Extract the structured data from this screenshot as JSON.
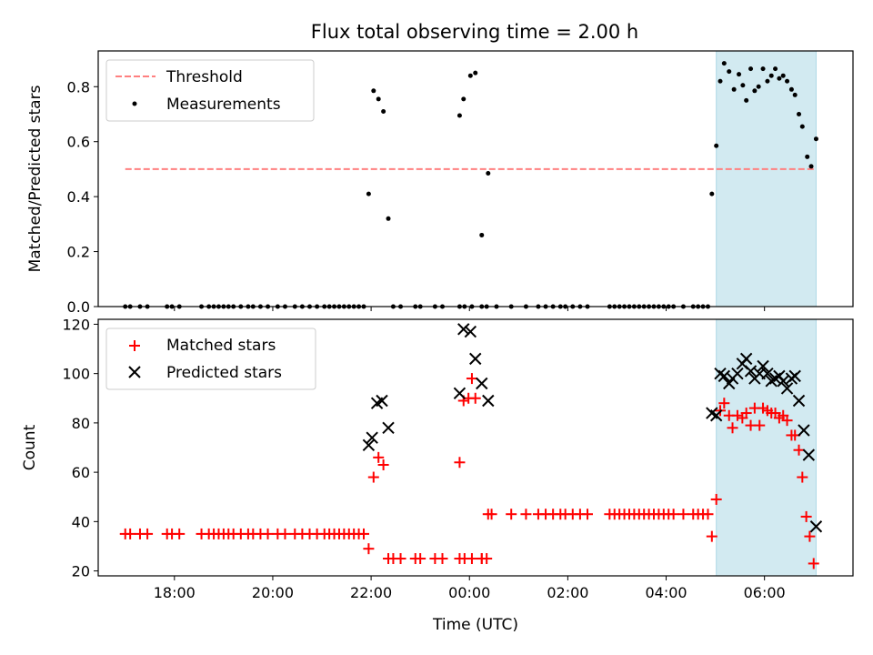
{
  "figure": {
    "title": "Flux total observing time = 2.00 h"
  },
  "chart_data": [
    {
      "type": "scatter",
      "ylabel": "Matched/Predicted stars",
      "ylim": [
        0,
        0.93
      ],
      "yticks": [
        0.0,
        0.2,
        0.4,
        0.6,
        0.8
      ],
      "ytick_labels": [
        "0.0",
        "0.2",
        "0.4",
        "0.6",
        "0.8"
      ],
      "xlim_hours": [
        16.45,
        31.8
      ],
      "shaded_span_hours": [
        29.02,
        31.05
      ],
      "shade_color": "#add8e6",
      "threshold": {
        "name": "Threshold",
        "y": 0.5,
        "x_hours": [
          17.0,
          31.05
        ],
        "color": "#ff8080"
      },
      "series": [
        {
          "name": "Measurements",
          "color": "#000000",
          "points": [
            [
              17.0,
              0
            ],
            [
              17.1,
              0
            ],
            [
              17.3,
              0
            ],
            [
              17.45,
              0
            ],
            [
              17.85,
              0
            ],
            [
              17.95,
              0
            ],
            [
              18.1,
              0
            ],
            [
              18.55,
              0
            ],
            [
              18.7,
              0
            ],
            [
              18.8,
              0
            ],
            [
              18.9,
              0
            ],
            [
              19.0,
              0
            ],
            [
              19.1,
              0
            ],
            [
              19.2,
              0
            ],
            [
              19.35,
              0
            ],
            [
              19.5,
              0
            ],
            [
              19.6,
              0
            ],
            [
              19.75,
              0
            ],
            [
              19.9,
              0
            ],
            [
              20.1,
              0
            ],
            [
              20.25,
              0
            ],
            [
              20.45,
              0
            ],
            [
              20.6,
              0
            ],
            [
              20.75,
              0
            ],
            [
              20.9,
              0
            ],
            [
              21.05,
              0
            ],
            [
              21.15,
              0
            ],
            [
              21.25,
              0
            ],
            [
              21.35,
              0
            ],
            [
              21.45,
              0
            ],
            [
              21.55,
              0
            ],
            [
              21.65,
              0
            ],
            [
              21.75,
              0
            ],
            [
              21.85,
              0
            ],
            [
              21.95,
              0.41
            ],
            [
              22.05,
              0.785
            ],
            [
              22.15,
              0.755
            ],
            [
              22.25,
              0.71
            ],
            [
              22.35,
              0.32
            ],
            [
              22.45,
              0
            ],
            [
              22.6,
              0
            ],
            [
              22.9,
              0
            ],
            [
              23.0,
              0
            ],
            [
              23.3,
              0
            ],
            [
              23.45,
              0
            ],
            [
              23.8,
              0
            ],
            [
              23.9,
              0
            ],
            [
              24.05,
              0
            ],
            [
              24.25,
              0
            ],
            [
              23.8,
              0.695
            ],
            [
              23.88,
              0.755
            ],
            [
              24.02,
              0.84
            ],
            [
              24.12,
              0.85
            ],
            [
              24.25,
              0.26
            ],
            [
              24.38,
              0.485
            ],
            [
              24.35,
              0
            ],
            [
              24.55,
              0
            ],
            [
              24.85,
              0
            ],
            [
              25.15,
              0
            ],
            [
              25.4,
              0
            ],
            [
              25.55,
              0
            ],
            [
              25.7,
              0
            ],
            [
              25.85,
              0
            ],
            [
              25.95,
              0
            ],
            [
              26.1,
              0
            ],
            [
              26.25,
              0
            ],
            [
              26.4,
              0
            ],
            [
              26.85,
              0
            ],
            [
              26.95,
              0
            ],
            [
              27.05,
              0
            ],
            [
              27.15,
              0
            ],
            [
              27.25,
              0
            ],
            [
              27.35,
              0
            ],
            [
              27.45,
              0
            ],
            [
              27.55,
              0
            ],
            [
              27.65,
              0
            ],
            [
              27.75,
              0
            ],
            [
              27.85,
              0
            ],
            [
              27.95,
              0
            ],
            [
              28.05,
              0
            ],
            [
              28.15,
              0
            ],
            [
              28.35,
              0
            ],
            [
              28.55,
              0
            ],
            [
              28.65,
              0
            ],
            [
              28.75,
              0
            ],
            [
              28.85,
              0
            ],
            [
              28.93,
              0.41
            ],
            [
              29.02,
              0.585
            ],
            [
              29.1,
              0.82
            ],
            [
              29.18,
              0.885
            ],
            [
              29.28,
              0.855
            ],
            [
              29.38,
              0.79
            ],
            [
              29.48,
              0.845
            ],
            [
              29.56,
              0.805
            ],
            [
              29.63,
              0.75
            ],
            [
              29.72,
              0.865
            ],
            [
              29.8,
              0.785
            ],
            [
              29.88,
              0.8
            ],
            [
              29.97,
              0.865
            ],
            [
              30.06,
              0.82
            ],
            [
              30.14,
              0.84
            ],
            [
              30.22,
              0.865
            ],
            [
              30.3,
              0.83
            ],
            [
              30.38,
              0.84
            ],
            [
              30.46,
              0.82
            ],
            [
              30.55,
              0.79
            ],
            [
              30.62,
              0.77
            ],
            [
              30.7,
              0.7
            ],
            [
              30.77,
              0.655
            ],
            [
              30.87,
              0.545
            ],
            [
              30.95,
              0.51
            ],
            [
              31.05,
              0.61
            ]
          ]
        }
      ]
    },
    {
      "type": "scatter",
      "xlabel": "Time (UTC)",
      "ylabel": "Count",
      "ylim": [
        18,
        122
      ],
      "yticks": [
        20,
        40,
        60,
        80,
        100,
        120
      ],
      "ytick_labels": [
        "20",
        "40",
        "60",
        "80",
        "100",
        "120"
      ],
      "xlim_hours": [
        16.45,
        31.8
      ],
      "xticks_hours": [
        18,
        20,
        22,
        24,
        26,
        28,
        30
      ],
      "xtick_labels": [
        "18:00",
        "20:00",
        "22:00",
        "00:00",
        "02:00",
        "04:00",
        "06:00"
      ],
      "shaded_span_hours": [
        29.02,
        31.05
      ],
      "shade_color": "#add8e6",
      "series": [
        {
          "name": "Matched stars",
          "color": "#ff0000",
          "marker": "plus",
          "points": [
            [
              17.0,
              35
            ],
            [
              17.1,
              35
            ],
            [
              17.3,
              35
            ],
            [
              17.45,
              35
            ],
            [
              17.85,
              35
            ],
            [
              17.95,
              35
            ],
            [
              18.1,
              35
            ],
            [
              18.55,
              35
            ],
            [
              18.7,
              35
            ],
            [
              18.8,
              35
            ],
            [
              18.9,
              35
            ],
            [
              19.0,
              35
            ],
            [
              19.1,
              35
            ],
            [
              19.2,
              35
            ],
            [
              19.35,
              35
            ],
            [
              19.5,
              35
            ],
            [
              19.6,
              35
            ],
            [
              19.75,
              35
            ],
            [
              19.9,
              35
            ],
            [
              20.1,
              35
            ],
            [
              20.25,
              35
            ],
            [
              20.45,
              35
            ],
            [
              20.6,
              35
            ],
            [
              20.75,
              35
            ],
            [
              20.9,
              35
            ],
            [
              21.05,
              35
            ],
            [
              21.15,
              35
            ],
            [
              21.25,
              35
            ],
            [
              21.35,
              35
            ],
            [
              21.45,
              35
            ],
            [
              21.55,
              35
            ],
            [
              21.65,
              35
            ],
            [
              21.75,
              35
            ],
            [
              21.85,
              35
            ],
            [
              21.95,
              29
            ],
            [
              22.05,
              58
            ],
            [
              22.15,
              66
            ],
            [
              22.25,
              63
            ],
            [
              22.35,
              25
            ],
            [
              22.45,
              25
            ],
            [
              22.6,
              25
            ],
            [
              22.9,
              25
            ],
            [
              23.0,
              25
            ],
            [
              23.3,
              25
            ],
            [
              23.45,
              25
            ],
            [
              23.8,
              25
            ],
            [
              23.9,
              25
            ],
            [
              24.05,
              25
            ],
            [
              24.25,
              25
            ],
            [
              24.35,
              25
            ],
            [
              23.8,
              64
            ],
            [
              23.88,
              89
            ],
            [
              23.98,
              90
            ],
            [
              24.05,
              98
            ],
            [
              24.12,
              90
            ],
            [
              24.25,
              25
            ],
            [
              24.38,
              43
            ],
            [
              24.45,
              43
            ],
            [
              24.85,
              43
            ],
            [
              25.15,
              43
            ],
            [
              25.4,
              43
            ],
            [
              25.55,
              43
            ],
            [
              25.7,
              43
            ],
            [
              25.85,
              43
            ],
            [
              25.95,
              43
            ],
            [
              26.1,
              43
            ],
            [
              26.25,
              43
            ],
            [
              26.4,
              43
            ],
            [
              26.85,
              43
            ],
            [
              26.95,
              43
            ],
            [
              27.05,
              43
            ],
            [
              27.15,
              43
            ],
            [
              27.25,
              43
            ],
            [
              27.35,
              43
            ],
            [
              27.45,
              43
            ],
            [
              27.55,
              43
            ],
            [
              27.65,
              43
            ],
            [
              27.75,
              43
            ],
            [
              27.85,
              43
            ],
            [
              27.95,
              43
            ],
            [
              28.05,
              43
            ],
            [
              28.15,
              43
            ],
            [
              28.35,
              43
            ],
            [
              28.55,
              43
            ],
            [
              28.65,
              43
            ],
            [
              28.75,
              43
            ],
            [
              28.85,
              43
            ],
            [
              28.93,
              34
            ],
            [
              29.02,
              49
            ],
            [
              29.1,
              85
            ],
            [
              29.18,
              88
            ],
            [
              29.28,
              83
            ],
            [
              29.35,
              78
            ],
            [
              29.45,
              83
            ],
            [
              29.55,
              82
            ],
            [
              29.63,
              84
            ],
            [
              29.72,
              79
            ],
            [
              29.8,
              86
            ],
            [
              29.9,
              79
            ],
            [
              29.97,
              86
            ],
            [
              30.06,
              85
            ],
            [
              30.14,
              84
            ],
            [
              30.22,
              84
            ],
            [
              30.3,
              82
            ],
            [
              30.38,
              83
            ],
            [
              30.46,
              81
            ],
            [
              30.55,
              75
            ],
            [
              30.62,
              75
            ],
            [
              30.7,
              69
            ],
            [
              30.77,
              58
            ],
            [
              30.85,
              42
            ],
            [
              30.92,
              34
            ],
            [
              31.0,
              23
            ]
          ]
        },
        {
          "name": "Predicted stars",
          "color": "#000000",
          "marker": "x",
          "points": [
            [
              21.95,
              71
            ],
            [
              22.02,
              74
            ],
            [
              22.12,
              88
            ],
            [
              22.22,
              89
            ],
            [
              22.35,
              78
            ],
            [
              23.8,
              92
            ],
            [
              23.88,
              118
            ],
            [
              24.02,
              117
            ],
            [
              24.12,
              106
            ],
            [
              24.25,
              96
            ],
            [
              24.38,
              89
            ],
            [
              28.93,
              84
            ],
            [
              29.02,
              83
            ],
            [
              29.1,
              100
            ],
            [
              29.18,
              99
            ],
            [
              29.28,
              96
            ],
            [
              29.35,
              98
            ],
            [
              29.45,
              100
            ],
            [
              29.55,
              104
            ],
            [
              29.63,
              106
            ],
            [
              29.72,
              101
            ],
            [
              29.8,
              98
            ],
            [
              29.9,
              100
            ],
            [
              29.97,
              103
            ],
            [
              30.06,
              100
            ],
            [
              30.14,
              97
            ],
            [
              30.22,
              98
            ],
            [
              30.3,
              99
            ],
            [
              30.38,
              97
            ],
            [
              30.46,
              94
            ],
            [
              30.55,
              98
            ],
            [
              30.62,
              99
            ],
            [
              30.7,
              89
            ],
            [
              30.8,
              77
            ],
            [
              30.9,
              67
            ],
            [
              31.05,
              38
            ]
          ]
        }
      ]
    }
  ]
}
